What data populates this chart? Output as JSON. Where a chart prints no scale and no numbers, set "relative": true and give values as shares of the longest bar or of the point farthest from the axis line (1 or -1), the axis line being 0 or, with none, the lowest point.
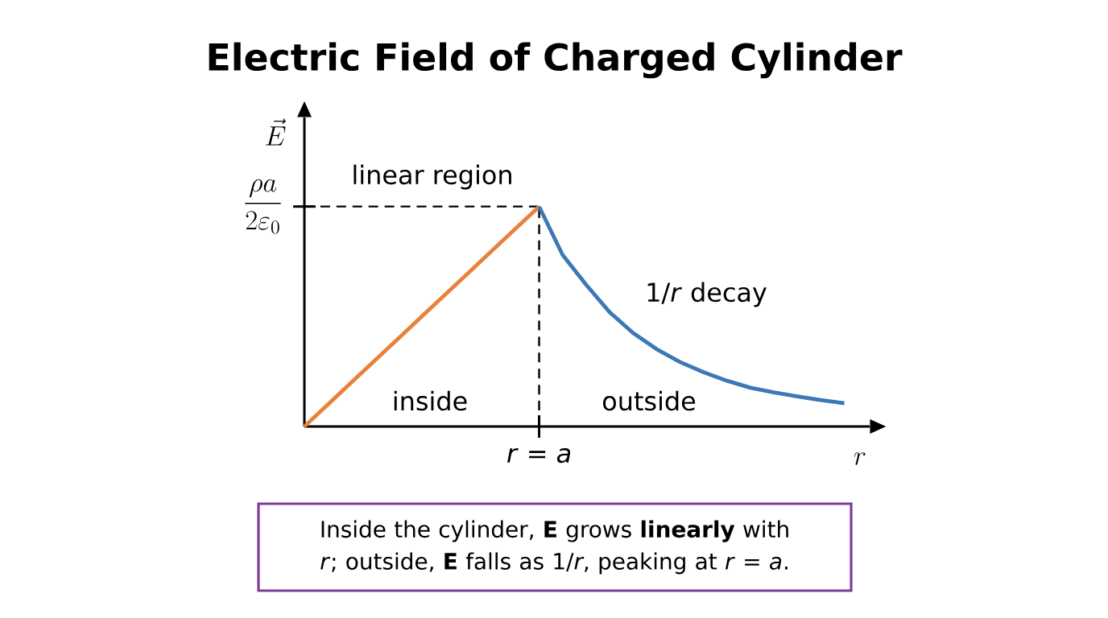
{
  "chart_data": {
    "type": "line",
    "title": "Electric Field of Charged Cylinder",
    "relative": true,
    "xlabel": "r",
    "ylabel": "\\vec{E}",
    "categories": [
      null,
      null,
      null,
      null,
      null,
      null,
      null,
      null,
      null,
      null,
      null,
      null,
      null,
      null,
      null,
      null,
      null,
      null,
      null,
      null,
      null,
      null,
      null,
      null
    ],
    "series": [
      {
        "color": "#e8823a",
        "values": [
          0,
          0.1,
          0.2,
          0.3,
          0.4,
          0.5,
          0.6,
          0.7,
          0.8,
          0.9,
          1,
          null,
          null,
          null,
          null,
          null,
          null,
          null,
          null,
          null,
          null,
          null,
          null,
          null
        ]
      },
      {
        "color": "#3b78b5",
        "values": [
          null,
          null,
          null,
          null,
          null,
          null,
          null,
          null,
          null,
          null,
          1,
          0.78,
          0.645,
          0.52,
          0.425,
          0.352,
          0.293,
          0.247,
          0.208,
          0.176,
          0.155,
          0.137,
          0.12,
          0.106
        ]
      }
    ],
    "ref_lines": [
      {
        "axis": "y",
        "value": 1,
        "label": "\\frac{\\rho a}{2\\varepsilon_0}",
        "line_style": "dashed"
      },
      {
        "axis": "x",
        "label": "*r* = *a*",
        "line_style": "dashed"
      }
    ],
    "annotations": [
      "linear region",
      "1/*r* decay",
      "inside",
      "outside",
      "Inside the cylinder, **E** grows **linearly** with *r*; outside, **E** falls as 1/*r*, peaking at *r* = *a*."
    ]
  }
}
